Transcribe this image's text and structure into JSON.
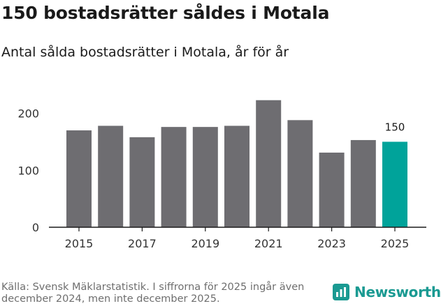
{
  "header": {
    "title": "150 bostadsrätter såldes i Motala",
    "subtitle": "Antal sålda bostadsrätter i Motala, år för år"
  },
  "footer": {
    "source": "Källa: Svensk Mäklarstatistik. I siffrorna för 2025 ingår även december 2024, men inte december 2025.",
    "brand": "Newsworthy"
  },
  "colors": {
    "bar": "#6e6d71",
    "highlight": "#00a39a",
    "axis": "#1a1a1a",
    "grid": "#d9d9d9",
    "brand": "#1a9a92"
  },
  "chart_data": {
    "type": "bar",
    "title": "Antal sålda bostadsrätter i Motala, år för år",
    "xlabel": "",
    "ylabel": "",
    "categories": [
      "2015",
      "2016",
      "2017",
      "2018",
      "2019",
      "2020",
      "2021",
      "2022",
      "2023",
      "2024",
      "2025"
    ],
    "values": [
      170,
      178,
      158,
      176,
      176,
      178,
      223,
      188,
      131,
      153,
      150
    ],
    "x_tick_labels": [
      "2015",
      "2017",
      "2019",
      "2021",
      "2023",
      "2025"
    ],
    "y_ticks": [
      0,
      100,
      200
    ],
    "ylim": [
      0,
      230
    ],
    "highlight_category": "2025",
    "data_labels": [
      {
        "category": "2025",
        "text": "150"
      }
    ],
    "grid": false
  }
}
